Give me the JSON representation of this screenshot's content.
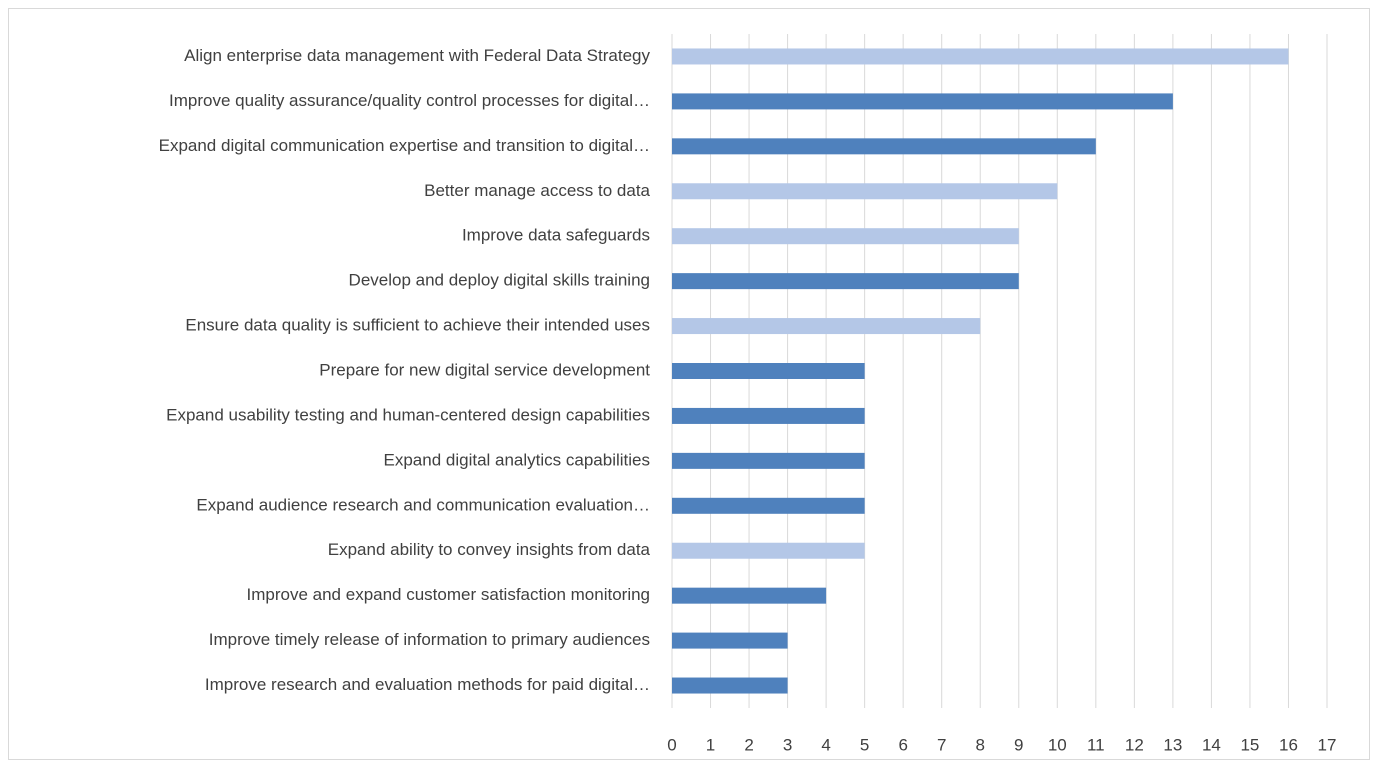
{
  "chart_data": {
    "type": "barh",
    "categories": [
      "Align enterprise data management with Federal Data Strategy",
      "Improve quality assurance/quality control processes for digital…",
      "Expand digital communication expertise and transition to digital…",
      "Better manage access to data",
      "Improve data safeguards",
      "Develop and deploy digital skills training",
      "Ensure data quality is sufficient to achieve their intended uses",
      "Prepare for new digital service development",
      "Expand usability testing and human-centered design capabilities",
      "Expand digital analytics capabilities",
      "Expand audience research and communication evaluation…",
      "Expand ability to convey insights from data",
      "Improve and expand customer satisfaction monitoring",
      "Improve timely release of information to primary audiences",
      "Improve research and evaluation methods for paid digital…"
    ],
    "values": [
      16,
      13,
      11,
      10,
      9,
      9,
      8,
      5,
      5,
      5,
      5,
      5,
      4,
      3,
      3
    ],
    "colors": [
      "#b4c7e7",
      "#4f81bd",
      "#4f81bd",
      "#b4c7e7",
      "#b4c7e7",
      "#4f81bd",
      "#b4c7e7",
      "#4f81bd",
      "#4f81bd",
      "#4f81bd",
      "#4f81bd",
      "#b4c7e7",
      "#4f81bd",
      "#4f81bd",
      "#4f81bd"
    ],
    "xlim": [
      0,
      17
    ],
    "xticks": [
      0,
      1,
      2,
      3,
      4,
      5,
      6,
      7,
      8,
      9,
      10,
      11,
      12,
      13,
      14,
      15,
      16,
      17
    ],
    "grid": true
  }
}
